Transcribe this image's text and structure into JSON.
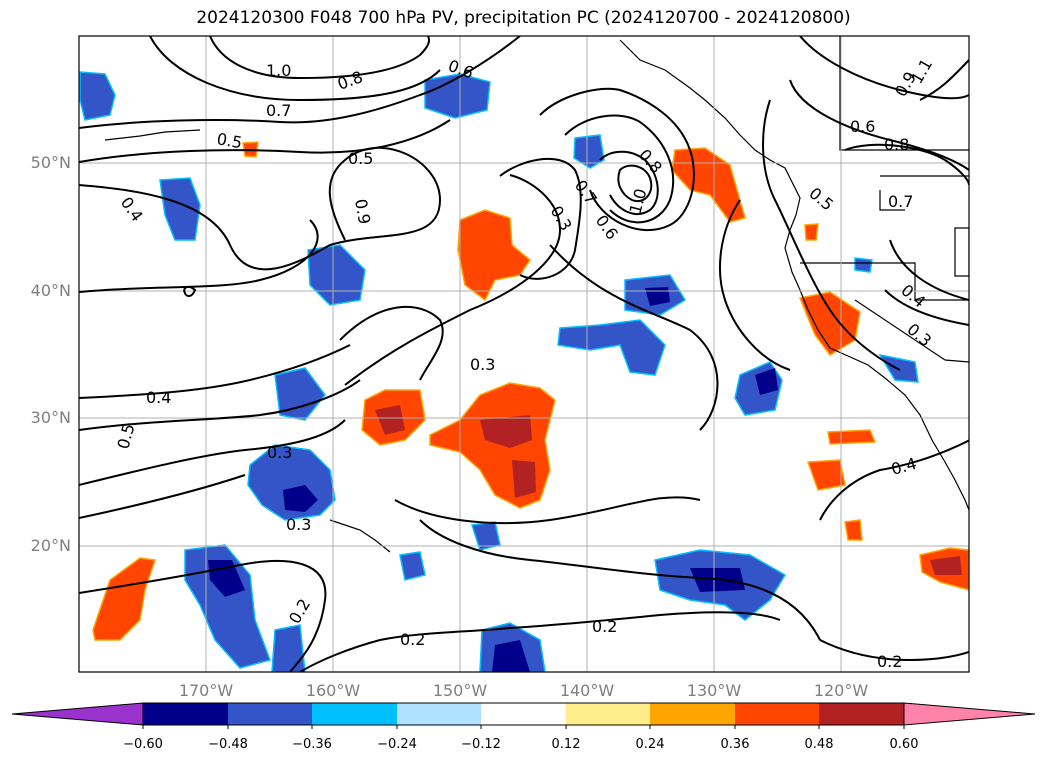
{
  "title": "2024120300 F048 700 hPa PV, precipitation PC (2024120700 - 2024120800)",
  "lat_labels": [
    "50°N",
    "40°N",
    "30°N",
    "20°N"
  ],
  "lon_labels": [
    "170°W",
    "160°W",
    "150°W",
    "140°W",
    "130°W",
    "120°W"
  ],
  "contour_labels": [
    "1.0",
    "0.8",
    "0.7",
    "0.6",
    "0.5",
    "0.5",
    "0.4",
    "0.9",
    "0.3",
    "0.7",
    "0.6",
    "0.8",
    "1.0",
    "0.3",
    "0.4",
    "0.5",
    "0.3",
    "0.3",
    "0.2",
    "0.2",
    "0.2",
    "0.4",
    "0.2",
    "0.6",
    "0.8",
    "0.5",
    "0.7",
    "0.9",
    "1.1",
    "0.4",
    "0.3"
  ],
  "colorbar": {
    "ticks": [
      "−0.60",
      "−0.48",
      "−0.36",
      "−0.24",
      "−0.12",
      "0.12",
      "0.24",
      "0.36",
      "0.48",
      "0.60"
    ],
    "colors": [
      "#9a32cd",
      "#00008b",
      "#3455c8",
      "#00bfff",
      "#b0e2ff",
      "#ffffff",
      "#ffec8b",
      "#ffa500",
      "#ff4500",
      "#b22222",
      "#ff82ab"
    ]
  },
  "palette": {
    "neg_strong": "#00008b",
    "neg_mid": "#3455c8",
    "neg_light": "#00bfff",
    "pos_light": "#ffa500",
    "pos_mid": "#ff4500",
    "pos_strong": "#b22222",
    "grid": "#b0b0b0",
    "label_gray": "#7f7f7f"
  }
}
